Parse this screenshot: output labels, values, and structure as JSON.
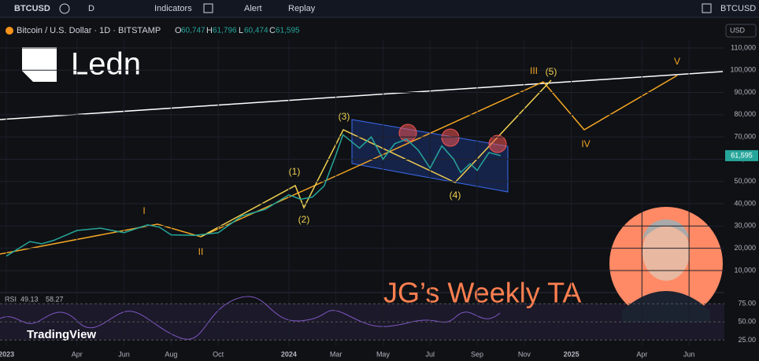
{
  "toolbar": {
    "symbol": "BTCUSD",
    "interval": "D",
    "indicators": "Indicators",
    "alert": "Alert",
    "replay": "Replay",
    "compare": "BTCUSD"
  },
  "chart_data": {
    "type": "line",
    "title": "Bitcoin / U.S. Dollar · 1D · BITSTAMP",
    "ohlc": {
      "o_label": "O",
      "o": "60,747",
      "h_label": "H",
      "h": "61,796",
      "l_label": "L",
      "l": "60,474",
      "c_label": "C",
      "c": "61,595"
    },
    "currency": "USD",
    "last_price_label": "61,595",
    "x": [
      0,
      1,
      1.5,
      2,
      3,
      4,
      5,
      6,
      6.5,
      7,
      8,
      9,
      10,
      11,
      12,
      12.5,
      13,
      13.5,
      14,
      14.3,
      15,
      15.5,
      16,
      16.5,
      17,
      17.5,
      18,
      18.5,
      19,
      19.3,
      19.7,
      20,
      20.5,
      21
    ],
    "series": [
      {
        "name": "BTCUSD",
        "color": "#26a69a",
        "values": [
          16500,
          23000,
          22000,
          23500,
          28000,
          29000,
          27000,
          30500,
          29500,
          26000,
          25800,
          27000,
          34500,
          37500,
          44000,
          42000,
          43000,
          48000,
          62000,
          71000,
          65000,
          70000,
          60000,
          67000,
          69000,
          64000,
          56000,
          66000,
          60000,
          54000,
          58000,
          55000,
          63000,
          61595
        ]
      }
    ],
    "xlim": [
      -0.27,
      30.5
    ],
    "xticks": [
      {
        "value": 0,
        "label": "2023"
      },
      {
        "value": 3,
        "label": "Apr"
      },
      {
        "value": 5,
        "label": "Jun"
      },
      {
        "value": 7,
        "label": "Aug"
      },
      {
        "value": 9,
        "label": "Oct"
      },
      {
        "value": 12,
        "label": "2024"
      },
      {
        "value": 14,
        "label": "Mar"
      },
      {
        "value": 16,
        "label": "May"
      },
      {
        "value": 18,
        "label": "Jul"
      },
      {
        "value": 20,
        "label": "Sep"
      },
      {
        "value": 22,
        "label": "Nov"
      },
      {
        "value": 24,
        "label": "2025"
      },
      {
        "value": 27,
        "label": "Apr"
      },
      {
        "value": 29,
        "label": "Jun"
      }
    ],
    "ylim": [
      800,
      117400
    ],
    "yticks": [
      {
        "value": 10000,
        "label": "10,000"
      },
      {
        "value": 20000,
        "label": "20,000"
      },
      {
        "value": 30000,
        "label": "30,000"
      },
      {
        "value": 40000,
        "label": "40,000"
      },
      {
        "value": 50000,
        "label": "50,000"
      },
      {
        "value": 60000,
        "label": "60,000"
      },
      {
        "value": 70000,
        "label": "70,000"
      },
      {
        "value": 80000,
        "label": "80,000"
      },
      {
        "value": 90000,
        "label": "90,000"
      },
      {
        "value": 100000,
        "label": "100,000"
      },
      {
        "value": 110000,
        "label": "110,000"
      }
    ],
    "annotations": [
      "I",
      "II",
      "(1)",
      "(2)",
      "(3)",
      "(4)",
      "(5)",
      "III",
      "IV",
      "V"
    ],
    "rsi": {
      "label": "RSI",
      "v1": "49.13",
      "v2": "58.27",
      "ylim": [
        20,
        85
      ],
      "yticks": [
        {
          "value": 25,
          "label": "25.00"
        },
        {
          "value": 50,
          "label": "50.00"
        },
        {
          "value": 75,
          "label": "75.00"
        }
      ]
    }
  },
  "branding": {
    "logo": "Ledn",
    "show": "JG’s Weekly TA",
    "watermark": "TradingView"
  }
}
